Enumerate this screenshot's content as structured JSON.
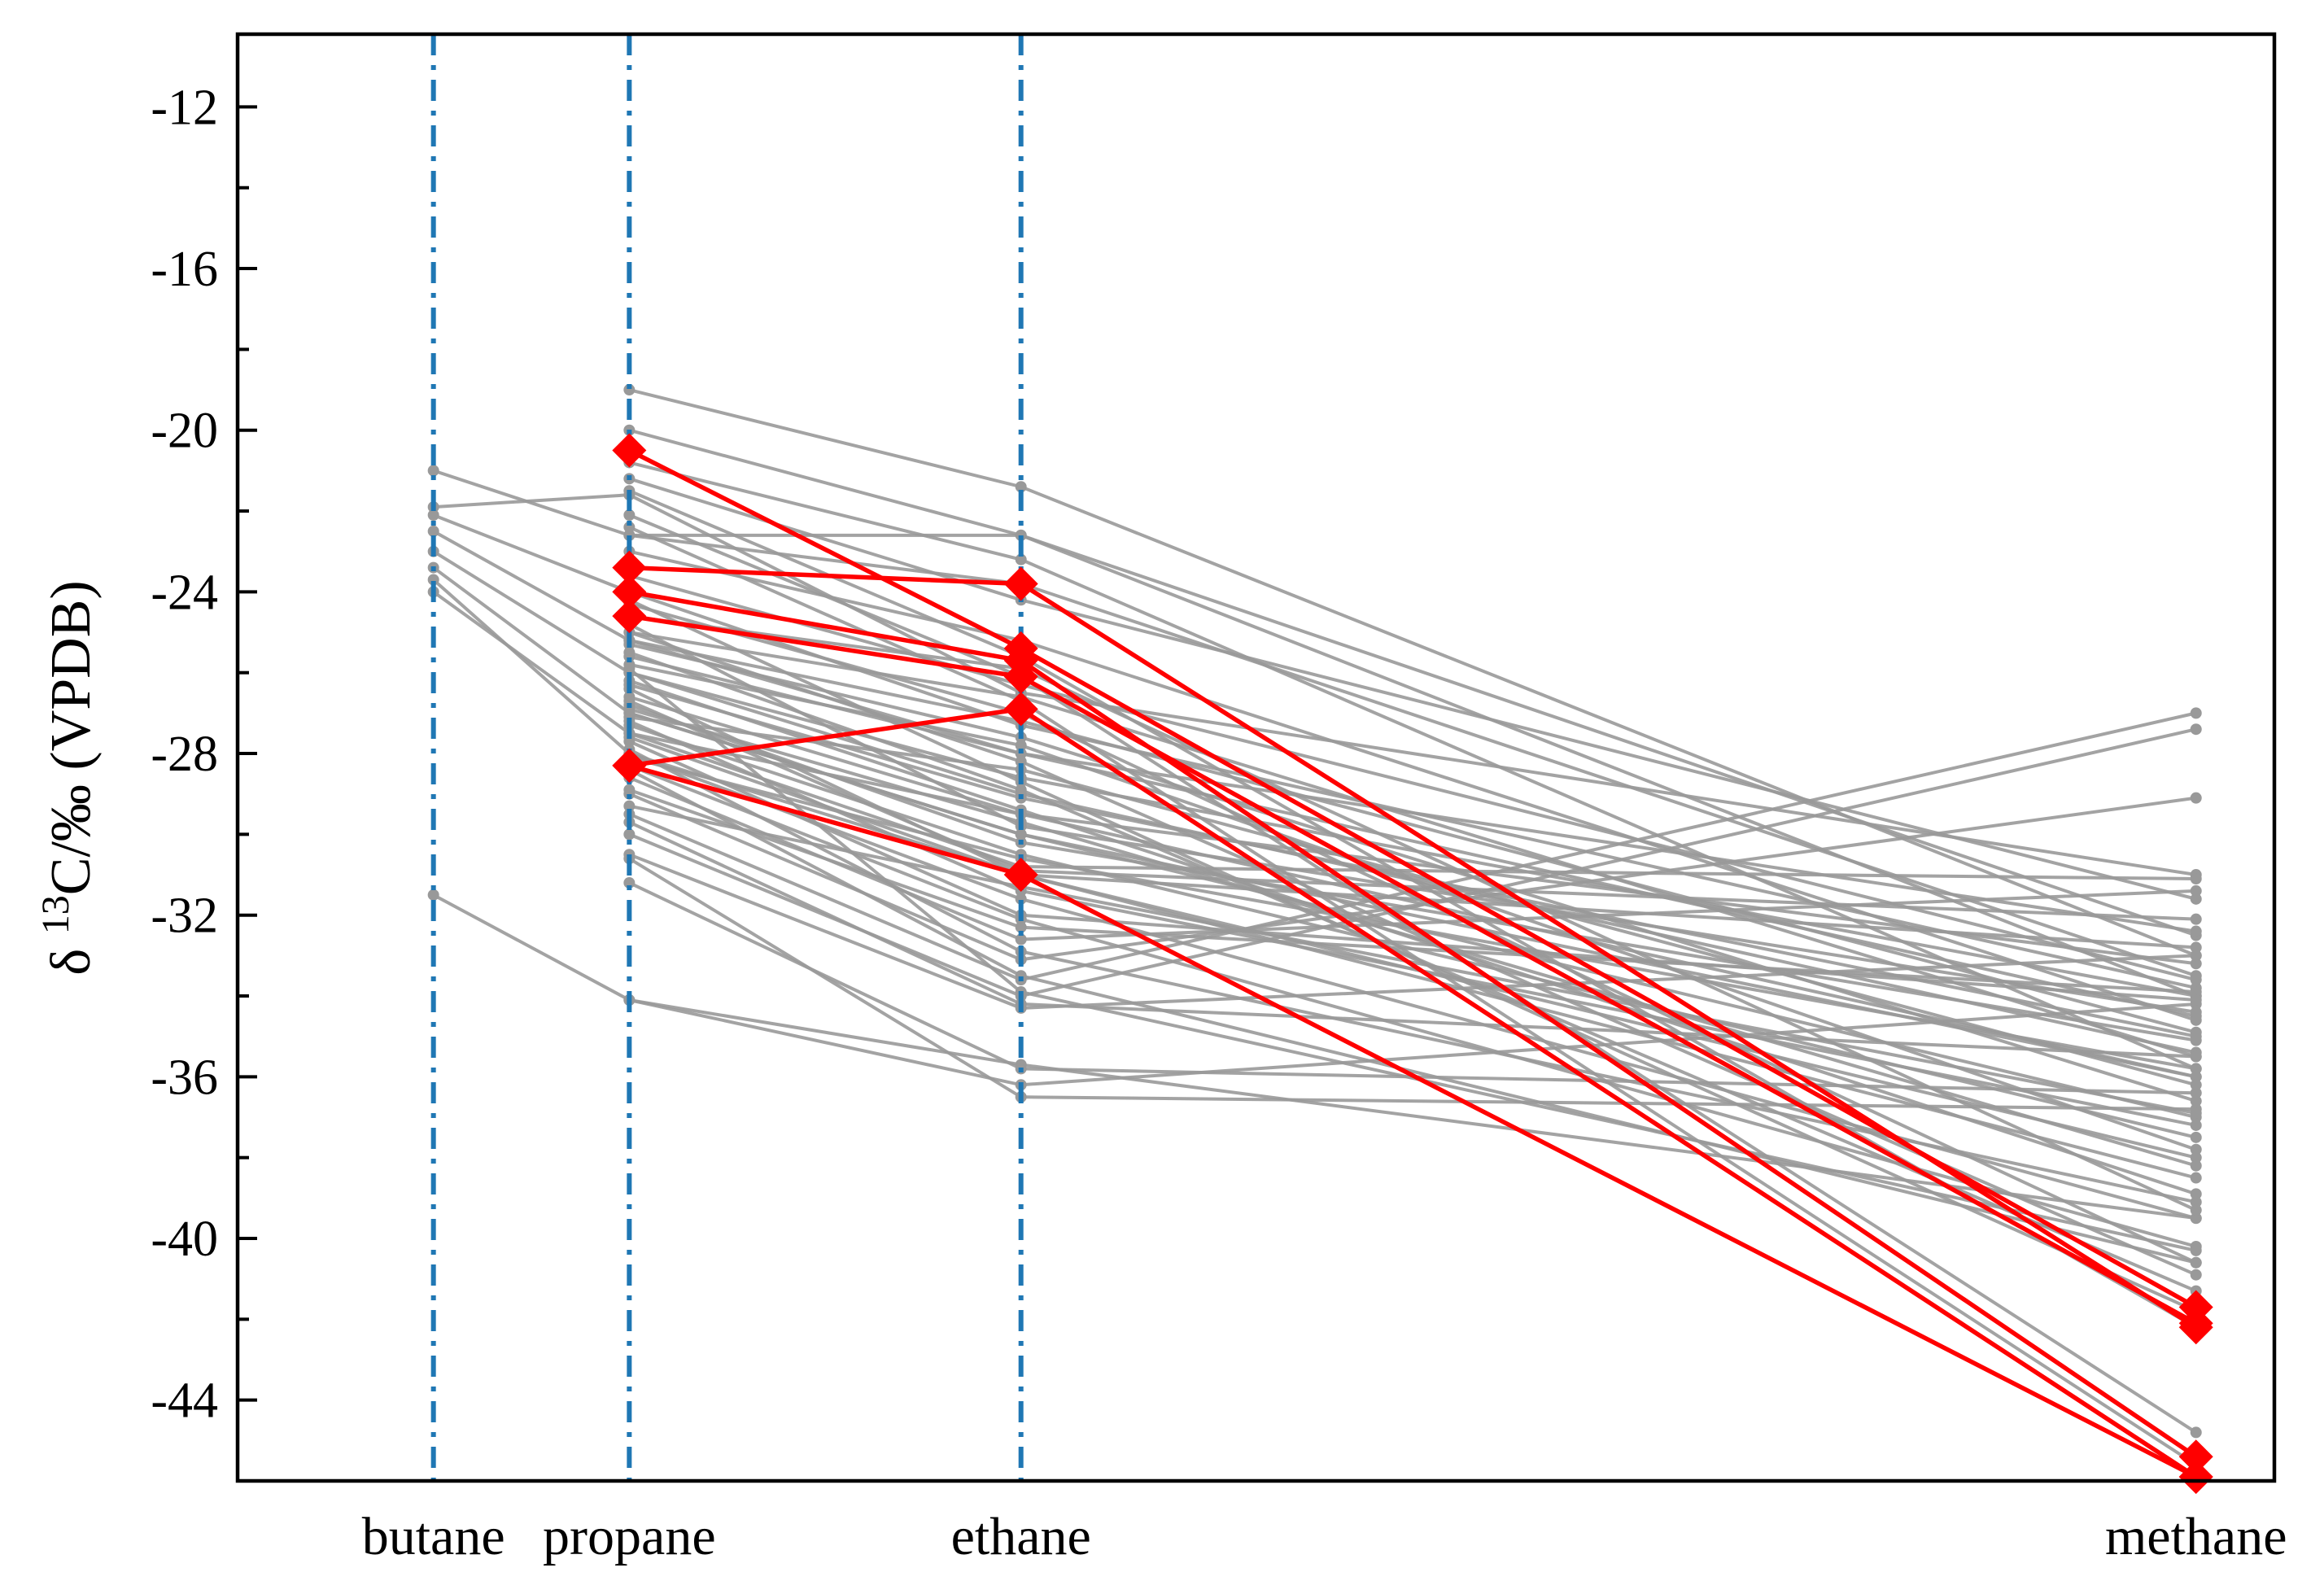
{
  "chart_data": {
    "type": "line",
    "ylabel_parts": {
      "prefix": "δ ",
      "superscript": "13",
      "suffix": "C/‰  (VPDB)"
    },
    "xlabel": "",
    "categories": [
      "butane",
      "propane",
      "ethane",
      "methane"
    ],
    "category_x": [
      -0.5,
      0,
      1,
      4
    ],
    "xlim": [
      -1,
      4.2
    ],
    "ylim": [
      -46,
      -10.2
    ],
    "yticks": [
      -12,
      -16,
      -20,
      -24,
      -28,
      -32,
      -36,
      -40,
      -44
    ],
    "ytick_labels": [
      "-12",
      "-16",
      "-20",
      "-24",
      "-28",
      "-32",
      "-36",
      "-40",
      "-44"
    ],
    "grid": false,
    "reference_lines": {
      "categories": [
        "butane",
        "propane",
        "ethane"
      ],
      "style": "dash-dot",
      "color": "#1f77b4"
    },
    "colors": {
      "background_series": "#999999",
      "highlight_series": "#ff0000",
      "reference_line": "#1f77b4",
      "axis": "#000000"
    },
    "background_series": [
      [
        -21.0,
        -22.6,
        -22.6,
        -32.5
      ],
      [
        -21.9,
        -21.6,
        -26.5,
        -31.0
      ],
      [
        -22.1,
        -24.0,
        -27.3,
        -33.8
      ],
      [
        -22.5,
        -25.2,
        -28.0,
        -34.5
      ],
      [
        -23.0,
        -26.0,
        -29.0,
        -35.4
      ],
      [
        -23.4,
        -27.0,
        -30.0,
        -37.0
      ],
      [
        -23.7,
        -28.0,
        -31.0,
        -38.0
      ],
      [
        -24.0,
        -27.5,
        -29.5,
        -36.0
      ],
      [
        -31.5,
        -34.1,
        -35.7,
        -39.5
      ],
      [
        null,
        -19.0,
        -21.4,
        -33.0
      ],
      [
        null,
        -20.0,
        -22.6,
        -34.0
      ],
      [
        null,
        -21.2,
        -24.2,
        -31.6
      ],
      [
        null,
        -22.6,
        -23.8,
        -33.5
      ],
      [
        null,
        -23.0,
        -25.2,
        -34.6
      ],
      [
        null,
        -25.0,
        -26.6,
        -35.5
      ],
      [
        null,
        -25.3,
        -27.6,
        -36.6
      ],
      [
        null,
        -25.6,
        -28.0,
        -32.4
      ],
      [
        null,
        -26.0,
        -28.6,
        -34.0
      ],
      [
        null,
        -26.3,
        -29.1,
        -35.0
      ],
      [
        null,
        -26.6,
        -29.5,
        -33.2
      ],
      [
        null,
        -27.0,
        -30.0,
        -36.0
      ],
      [
        null,
        -27.3,
        -30.5,
        -37.5
      ],
      [
        null,
        -27.6,
        -31.0,
        -38.5
      ],
      [
        null,
        -28.0,
        -31.6,
        -39.5
      ],
      [
        null,
        -28.3,
        -32.1,
        -40.2
      ],
      [
        null,
        -28.6,
        -32.6,
        -31.4
      ],
      [
        null,
        -29.0,
        -33.1,
        -29.1
      ],
      [
        null,
        -29.5,
        -33.6,
        -27.0
      ],
      [
        null,
        -30.0,
        -34.0,
        -27.4
      ],
      [
        null,
        -30.5,
        -34.3,
        -33.0
      ],
      [
        null,
        -31.2,
        -35.8,
        -36.4
      ],
      [
        null,
        -34.1,
        -36.2,
        -34.2
      ],
      [
        null,
        -21.5,
        -25.6,
        -42.2
      ],
      [
        null,
        -22.1,
        -26.1,
        -44.8
      ],
      [
        null,
        -22.4,
        -26.7,
        -45.6
      ],
      [
        null,
        -24.3,
        -27.0,
        -40.6
      ],
      [
        null,
        -25.0,
        -28.2,
        -40.9
      ],
      [
        null,
        -25.5,
        -28.9,
        -41.3
      ],
      [
        null,
        -26.2,
        -29.4,
        -38.9
      ],
      [
        null,
        -26.8,
        -30.2,
        -35.1
      ],
      [
        null,
        -27.2,
        -31.4,
        -37.2
      ],
      [
        null,
        -27.9,
        -32.9,
        -39.1
      ],
      [
        null,
        -28.4,
        -33.5,
        -40.6
      ],
      [
        null,
        -29.7,
        -34.2,
        -35.5
      ],
      [
        null,
        -30.6,
        -36.5,
        -36.8
      ],
      [
        null,
        -20.8,
        -23.2,
        -35.8
      ],
      [
        null,
        -23.6,
        -26.3,
        -33.6
      ],
      [
        null,
        -24.8,
        -29.8,
        -34.4
      ],
      [
        null,
        -26.4,
        -31.0,
        -32.8
      ],
      [
        null,
        -27.5,
        -30.8,
        -31.1
      ],
      [
        null,
        -28.9,
        -32.3,
        -33.9
      ],
      [
        null,
        -25.8,
        -27.8,
        -37.8
      ],
      [
        null,
        -27.1,
        -28.4,
        -36.2
      ],
      [
        null,
        -24.6,
        -25.9,
        -39.3
      ],
      [
        null,
        -26.9,
        -29.7,
        -38.2
      ],
      [
        null,
        -28.1,
        -30.6,
        -35.8
      ],
      [
        null,
        -29.3,
        -31.3,
        -36.9
      ],
      [
        null,
        -25.2,
        -27.2,
        -34.9
      ],
      [
        null,
        -24.2,
        -28.7,
        -41.8
      ],
      [
        null,
        -27.7,
        -32.0,
        -34.1
      ],
      [
        null,
        -26.7,
        -30.9,
        -32.1
      ],
      [
        null,
        -25.9,
        -33.9,
        -40.3
      ]
    ],
    "highlight_series": [
      [
        null,
        -20.5,
        -25.4,
        -41.7
      ],
      [
        null,
        -23.4,
        -23.8,
        -42.2
      ],
      [
        null,
        -24.0,
        -25.7,
        -45.4
      ],
      [
        null,
        -24.6,
        -26.1,
        -42.1
      ],
      [
        null,
        -28.3,
        -26.9,
        -45.9
      ],
      [
        null,
        -28.3,
        -31.0,
        -45.9
      ]
    ]
  }
}
